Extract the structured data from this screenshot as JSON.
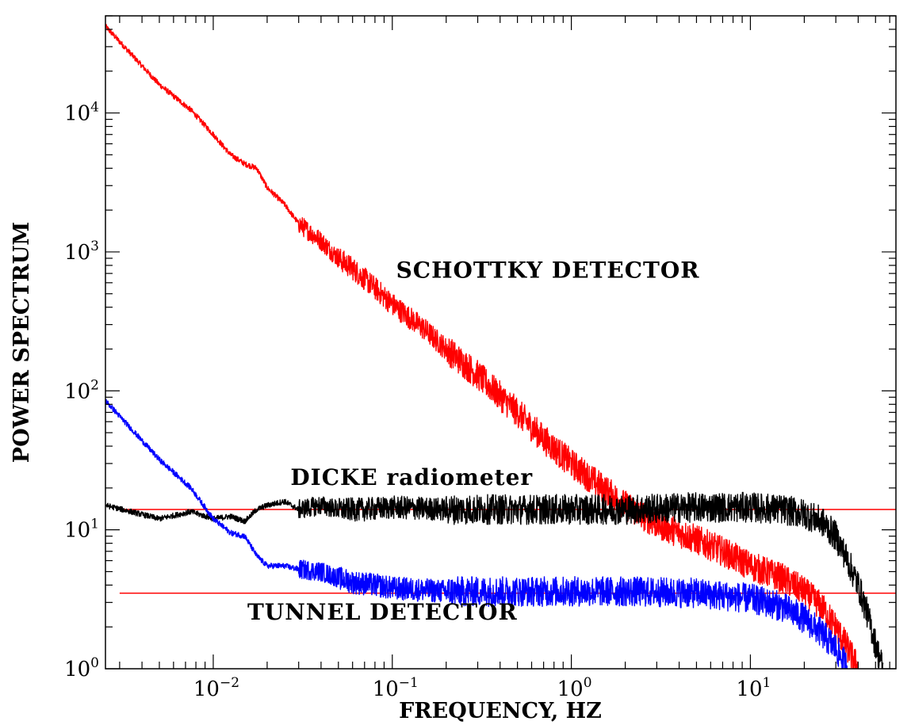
{
  "chart_data": {
    "type": "line",
    "title": "",
    "xlabel": "FREQUENCY, HZ",
    "ylabel": "POWER SPECTRUM",
    "x_scale": "log",
    "y_scale": "log",
    "xlim": [
      0.0025,
      65
    ],
    "ylim": [
      1,
      50000
    ],
    "grid": false,
    "legend": "none",
    "x_ticks": [
      {
        "value": 0.01,
        "base": "10",
        "exp": "−2"
      },
      {
        "value": 0.1,
        "base": "10",
        "exp": "−1"
      },
      {
        "value": 1,
        "base": "10",
        "exp": "0"
      },
      {
        "value": 10,
        "base": "10",
        "exp": "1"
      }
    ],
    "y_ticks": [
      {
        "value": 1,
        "base": "10",
        "exp": "0"
      },
      {
        "value": 10,
        "base": "10",
        "exp": "1"
      },
      {
        "value": 100,
        "base": "10",
        "exp": "2"
      },
      {
        "value": 1000,
        "base": "10",
        "exp": "3"
      },
      {
        "value": 10000,
        "base": "10",
        "exp": "4"
      }
    ],
    "annotations": [
      {
        "text": "SCHOTTKY DETECTOR",
        "x": 0.105,
        "y": 650
      },
      {
        "text": "DICKE radiometer",
        "x": 0.027,
        "y": 21
      },
      {
        "text": "TUNNEL DETECTOR",
        "x": 0.0155,
        "y": 2.25
      }
    ],
    "series": [
      {
        "color": "#ff0000",
        "x": [
          0.0025,
          0.005,
          0.0075,
          0.01,
          0.0125,
          0.015,
          0.0175,
          0.02,
          0.025,
          0.03,
          0.04,
          0.05,
          0.06,
          0.08,
          0.1,
          0.15,
          0.2,
          0.3,
          0.5,
          0.7,
          1,
          1.5,
          2,
          3,
          5,
          7,
          10,
          15,
          20,
          25,
          30,
          35,
          40
        ],
        "y": [
          42000,
          16000,
          10500,
          7000,
          5000,
          4300,
          4000,
          2900,
          2200,
          1600,
          1200,
          900,
          760,
          550,
          420,
          280,
          200,
          130,
          70,
          45,
          30,
          20,
          15,
          11,
          8.5,
          7,
          5.5,
          4.5,
          3.6,
          2.8,
          2.0,
          1.4,
          1.0
        ]
      },
      {
        "color": "#000000",
        "x": [
          0.0025,
          0.005,
          0.0075,
          0.01,
          0.0125,
          0.015,
          0.0175,
          0.02,
          0.025,
          0.03,
          0.04,
          0.05,
          0.07,
          0.1,
          0.2,
          0.5,
          1,
          2,
          5,
          10,
          15,
          20,
          25,
          30,
          35,
          40,
          45,
          50,
          55
        ],
        "y": [
          15,
          12,
          13.5,
          12,
          12.5,
          11.5,
          14,
          15,
          16,
          14,
          15,
          14,
          14,
          14.5,
          14,
          14,
          14,
          14,
          14.5,
          14.5,
          14,
          13,
          11.5,
          9,
          6,
          4,
          2.5,
          1.5,
          1.0
        ]
      },
      {
        "color": "#0000ff",
        "x": [
          0.0025,
          0.005,
          0.0075,
          0.01,
          0.0125,
          0.015,
          0.0175,
          0.02,
          0.025,
          0.03,
          0.04,
          0.05,
          0.06,
          0.08,
          0.1,
          0.2,
          0.5,
          1,
          2,
          5,
          10,
          15,
          20,
          25,
          30,
          35
        ],
        "y": [
          85,
          32,
          20,
          12,
          9.5,
          9,
          6.5,
          5.5,
          5.5,
          5.2,
          5,
          4.5,
          4.2,
          4,
          3.8,
          3.6,
          3.6,
          3.6,
          3.6,
          3.5,
          3.2,
          2.8,
          2.3,
          1.8,
          1.4,
          1.0
        ]
      }
    ],
    "reference_lines": [
      {
        "y": 14,
        "color": "#ff0000"
      },
      {
        "y": 3.5,
        "color": "#ff0000"
      }
    ]
  }
}
